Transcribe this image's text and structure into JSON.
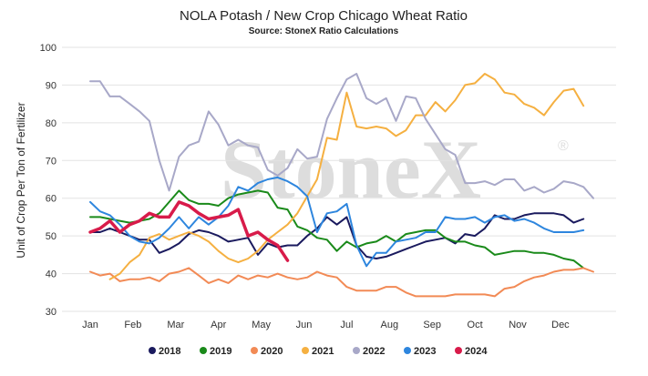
{
  "chart_data": {
    "type": "line",
    "title": "NOLA Potash / New Crop Chicago Wheat Ratio",
    "subtitle": "Source: StoneX Ratio Calculations",
    "ylabel": "Unit of Crop Per Ton of Fertilizer",
    "xlabel": "",
    "ylim": [
      30,
      100
    ],
    "yticks": [
      "30",
      "40",
      "50",
      "60",
      "70",
      "80",
      "90",
      "100"
    ],
    "x_month_ticks": [
      "Jan",
      "Feb",
      "Mar",
      "Apr",
      "May",
      "Jun",
      "Jul",
      "Aug",
      "Sep",
      "Oct",
      "Nov",
      "Dec"
    ],
    "x_unit": "week of year (1-52)",
    "watermark": "StoneX",
    "grid": true,
    "legend_position": "bottom",
    "series": [
      {
        "name": "2018",
        "color": "#1a1a5e",
        "x": [
          1,
          2,
          3,
          4,
          5,
          6,
          7,
          8,
          9,
          10,
          11,
          12,
          13,
          14,
          15,
          16,
          17,
          18,
          19,
          20,
          21,
          22,
          23,
          24,
          25,
          26,
          27,
          28,
          29,
          30,
          31,
          32,
          33,
          34,
          35,
          36,
          37,
          38,
          39,
          40,
          41,
          42,
          43,
          44,
          45,
          46,
          47,
          48,
          49,
          50,
          51,
          52
        ],
        "values": [
          51,
          51,
          52,
          51,
          50,
          49,
          49,
          45.5,
          46.5,
          48,
          50.5,
          51.5,
          51,
          50,
          48.5,
          49,
          49.5,
          45,
          48,
          47,
          47.5,
          47.5,
          50,
          52,
          55,
          53,
          55,
          47.5,
          44.5,
          44,
          44.5,
          45.5,
          46.5,
          47.5,
          48.5,
          49,
          49.5,
          48,
          50.5,
          50,
          52,
          55.5,
          54.5,
          54.5,
          55.5,
          56,
          56,
          56,
          55.5,
          53.5,
          54.5,
          null
        ]
      },
      {
        "name": "2019",
        "color": "#1a8a1a",
        "x": [
          1,
          2,
          3,
          4,
          5,
          6,
          7,
          8,
          9,
          10,
          11,
          12,
          13,
          14,
          15,
          16,
          17,
          18,
          19,
          20,
          21,
          22,
          23,
          24,
          25,
          26,
          27,
          28,
          29,
          30,
          31,
          32,
          33,
          34,
          35,
          36,
          37,
          38,
          39,
          40,
          41,
          42,
          43,
          44,
          45,
          46,
          47,
          48,
          49,
          50,
          51,
          52
        ],
        "values": [
          55,
          55,
          54.5,
          54,
          53.5,
          54,
          54.5,
          56,
          59,
          62,
          59.5,
          58.5,
          58.5,
          58,
          60,
          61,
          61.5,
          62,
          61.5,
          57.5,
          57,
          52.5,
          51.5,
          49.5,
          49,
          46,
          48.5,
          47,
          48,
          48.5,
          50,
          48.5,
          50.5,
          51,
          51.5,
          51.5,
          49.5,
          48.5,
          48.5,
          47.5,
          47,
          45,
          45.5,
          46,
          46,
          45.5,
          45.5,
          45,
          44,
          43.5,
          41.5,
          null
        ]
      },
      {
        "name": "2020",
        "color": "#f28a55",
        "x": [
          1,
          2,
          3,
          4,
          5,
          6,
          7,
          8,
          9,
          10,
          11,
          12,
          13,
          14,
          15,
          16,
          17,
          18,
          19,
          20,
          21,
          22,
          23,
          24,
          25,
          26,
          27,
          28,
          29,
          30,
          31,
          32,
          33,
          34,
          35,
          36,
          37,
          38,
          39,
          40,
          41,
          42,
          43,
          44,
          45,
          46,
          47,
          48,
          49,
          50,
          51,
          52
        ],
        "values": [
          40.5,
          39.5,
          40,
          38,
          38.5,
          38.5,
          39,
          38,
          40,
          40.5,
          41.5,
          39.5,
          37.5,
          38.5,
          37.5,
          39.5,
          38.5,
          39.5,
          39,
          40,
          39,
          38.5,
          39,
          40.5,
          39.5,
          39,
          36.5,
          35.5,
          35.5,
          35.5,
          36.5,
          36.5,
          35,
          34,
          34,
          34,
          34,
          34.5,
          34.5,
          34.5,
          34.5,
          34,
          36,
          36.5,
          38,
          39,
          39.5,
          40.5,
          41,
          41,
          41.5,
          40.5
        ]
      },
      {
        "name": "2021",
        "color": "#f5b041",
        "x": [
          1,
          2,
          3,
          4,
          5,
          6,
          7,
          8,
          9,
          10,
          11,
          12,
          13,
          14,
          15,
          16,
          17,
          18,
          19,
          20,
          21,
          22,
          23,
          24,
          25,
          26,
          27,
          28,
          29,
          30,
          31,
          32,
          33,
          34,
          35,
          36,
          37,
          38,
          39,
          40,
          41,
          42,
          43,
          44,
          45,
          46,
          47,
          48,
          49,
          50,
          51,
          52
        ],
        "values": [
          null,
          null,
          38.5,
          40,
          43,
          45,
          49.5,
          50.5,
          49,
          50,
          51,
          50,
          48.5,
          46,
          44,
          43,
          44,
          46,
          49,
          51,
          53,
          56,
          60.5,
          65,
          76,
          75.5,
          88,
          79,
          78.5,
          79,
          78.5,
          76.5,
          78,
          82,
          82,
          85.5,
          83,
          86,
          90,
          90.5,
          93,
          91.5,
          88,
          87.5,
          85,
          84,
          82,
          85.5,
          88.5,
          89,
          84.5,
          null
        ]
      },
      {
        "name": "2022",
        "color": "#a8a8c8",
        "x": [
          1,
          2,
          3,
          4,
          5,
          6,
          7,
          8,
          9,
          10,
          11,
          12,
          13,
          14,
          15,
          16,
          17,
          18,
          19,
          20,
          21,
          22,
          23,
          24,
          25,
          26,
          27,
          28,
          29,
          30,
          31,
          32,
          33,
          34,
          35,
          36,
          37,
          38,
          39,
          40,
          41,
          42,
          43,
          44,
          45,
          46,
          47,
          48,
          49,
          50,
          51,
          52
        ],
        "values": [
          91,
          91,
          87,
          87,
          85,
          83,
          80.5,
          70,
          62,
          71,
          74,
          75,
          83,
          79.5,
          74,
          75.5,
          74,
          73.5,
          67.5,
          66,
          68,
          73,
          70.5,
          71,
          81,
          86.5,
          91.5,
          93,
          86.5,
          85,
          86.5,
          80.5,
          87,
          86.5,
          81,
          77,
          73,
          71.5,
          64,
          64,
          64.5,
          63.5,
          65,
          65,
          62,
          63,
          61.5,
          62.5,
          64.5,
          64,
          63,
          60
        ]
      },
      {
        "name": "2023",
        "color": "#2e86de",
        "x": [
          1,
          2,
          3,
          4,
          5,
          6,
          7,
          8,
          9,
          10,
          11,
          12,
          13,
          14,
          15,
          16,
          17,
          18,
          19,
          20,
          21,
          22,
          23,
          24,
          25,
          26,
          27,
          28,
          29,
          30,
          31,
          32,
          33,
          34,
          35,
          36,
          37,
          38,
          39,
          40,
          41,
          42,
          43,
          44,
          45,
          46,
          47,
          48,
          49,
          50,
          51,
          52
        ],
        "values": [
          59,
          56.5,
          55.5,
          53,
          50,
          48.5,
          48,
          49.5,
          52,
          55,
          52,
          55,
          53,
          55,
          58,
          63,
          62,
          64,
          65,
          65.5,
          64.5,
          63,
          60.5,
          51,
          56,
          56.5,
          58.5,
          47.5,
          42,
          45.5,
          45.5,
          48.5,
          49,
          49.5,
          51,
          51,
          55,
          54.5,
          54.5,
          55,
          53.5,
          55,
          55.5,
          54,
          54.5,
          53.5,
          52,
          51,
          51,
          51,
          51.5,
          null
        ]
      },
      {
        "name": "2024",
        "color": "#d81b4a",
        "x": [
          1,
          2,
          3,
          4,
          5,
          6,
          7,
          8,
          9,
          10,
          11,
          12,
          13,
          14,
          15,
          16,
          17,
          18,
          19,
          20,
          21,
          22,
          23,
          24,
          25,
          26,
          27,
          28,
          29,
          30,
          31,
          32,
          33,
          34,
          35,
          36,
          37,
          38,
          39,
          40,
          41,
          42,
          43,
          44,
          45,
          46,
          47,
          48,
          49,
          50,
          51,
          52
        ],
        "values": [
          51,
          52,
          54,
          51,
          53,
          54,
          56,
          55,
          55,
          59,
          58,
          56,
          54.5,
          55,
          55.5,
          57,
          50,
          51,
          49,
          47.5,
          43.5,
          null,
          null,
          null,
          null,
          null,
          null,
          null,
          null,
          null,
          null,
          null,
          null,
          null,
          null,
          null,
          null,
          null,
          null,
          null,
          null,
          null,
          null,
          null,
          null,
          null,
          null,
          null,
          null,
          null,
          null,
          null
        ]
      }
    ]
  }
}
